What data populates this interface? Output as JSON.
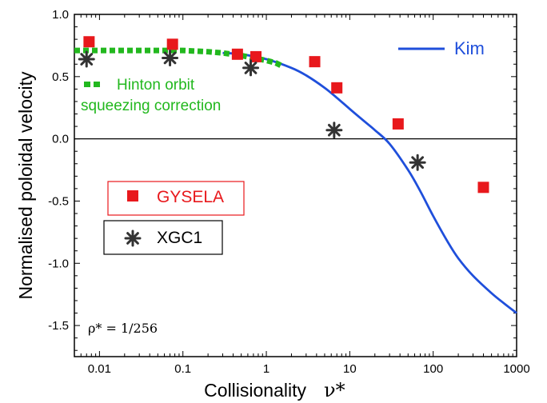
{
  "chart_data": {
    "type": "scatter",
    "xlabel": "Collisionality",
    "xlabel_symbol": "ν*",
    "ylabel": "Normalised poloidal velocity",
    "x_scale": "log",
    "xlim": [
      0.005,
      1000
    ],
    "ylim": [
      -1.75,
      1.0
    ],
    "x_ticks": [
      {
        "value": 0.01,
        "label": "0.01"
      },
      {
        "value": 0.1,
        "label": "0.1"
      },
      {
        "value": 1,
        "label": "1"
      },
      {
        "value": 10,
        "label": "10"
      },
      {
        "value": 100,
        "label": "100"
      },
      {
        "value": 1000,
        "label": "1000"
      }
    ],
    "y_ticks": [
      {
        "value": 1.0,
        "label": "1.0"
      },
      {
        "value": 0.5,
        "label": "0.5"
      },
      {
        "value": 0.0,
        "label": "0.0"
      },
      {
        "value": -0.5,
        "label": "-0.5"
      },
      {
        "value": -1.0,
        "label": "-1.0"
      },
      {
        "value": -1.5,
        "label": "-1.5"
      }
    ],
    "zero_line": true,
    "grid": false,
    "series": [
      {
        "name": "Kim",
        "kind": "line",
        "color": "#1f4fdb",
        "x": [
          0.3,
          0.5,
          1,
          2,
          3,
          5,
          7,
          10,
          15,
          20,
          30,
          50,
          70,
          100,
          150,
          200,
          300,
          500,
          700,
          1000
        ],
        "y": [
          0.69,
          0.68,
          0.64,
          0.57,
          0.51,
          0.41,
          0.33,
          0.24,
          0.14,
          0.07,
          -0.04,
          -0.25,
          -0.42,
          -0.62,
          -0.83,
          -0.96,
          -1.1,
          -1.24,
          -1.32,
          -1.4
        ]
      },
      {
        "name": "Hinton orbit squeezing correction",
        "legend_lines": [
          "Hinton orbit",
          "squeezing correction"
        ],
        "kind": "dashed-line",
        "color": "#22b81e",
        "x": [
          0.005,
          0.01,
          0.02,
          0.05,
          0.1,
          0.2,
          0.3,
          0.5,
          0.7,
          1.0,
          1.3,
          1.6
        ],
        "y": [
          0.71,
          0.71,
          0.71,
          0.71,
          0.71,
          0.7,
          0.69,
          0.67,
          0.65,
          0.63,
          0.61,
          0.58
        ]
      },
      {
        "name": "GYSELA",
        "kind": "square-markers",
        "color": "#e8181c",
        "x": [
          0.0075,
          0.075,
          0.45,
          0.75,
          3.8,
          7,
          38,
          400
        ],
        "y": [
          0.78,
          0.76,
          0.68,
          0.66,
          0.62,
          0.41,
          0.12,
          -0.39
        ]
      },
      {
        "name": "XGC1",
        "kind": "star-markers",
        "color": "#333333",
        "x": [
          0.007,
          0.07,
          0.65,
          6.5,
          65
        ],
        "y": [
          0.64,
          0.65,
          0.57,
          0.07,
          -0.19
        ]
      }
    ],
    "annotation": "ρ* = 1/256"
  }
}
